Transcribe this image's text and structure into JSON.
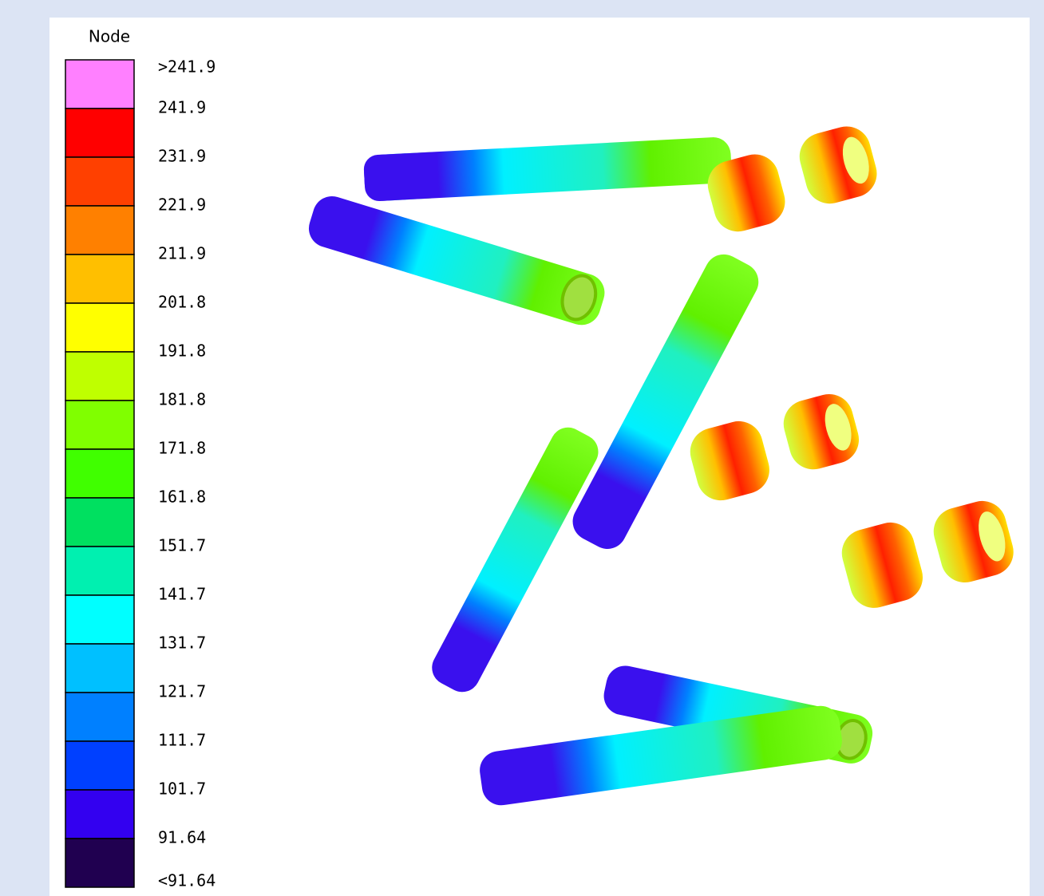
{
  "legend": {
    "title": "Node",
    "labels": [
      ">241.9",
      "241.9",
      "231.9",
      "221.9",
      "211.9",
      "201.8",
      "191.8",
      "181.8",
      "171.8",
      "161.8",
      "151.7",
      "141.7",
      "131.7",
      "121.7",
      "111.7",
      "101.7",
      "91.64",
      "<91.64"
    ],
    "colors": [
      "#ff80ff",
      "#ff0000",
      "#ff4000",
      "#ff8000",
      "#ffbf00",
      "#ffff00",
      "#bfff00",
      "#80ff00",
      "#40ff00",
      "#00e060",
      "#00f0b0",
      "#00ffff",
      "#00c0ff",
      "#0080ff",
      "#0040ff",
      "#3300f0",
      "#200050"
    ]
  }
}
